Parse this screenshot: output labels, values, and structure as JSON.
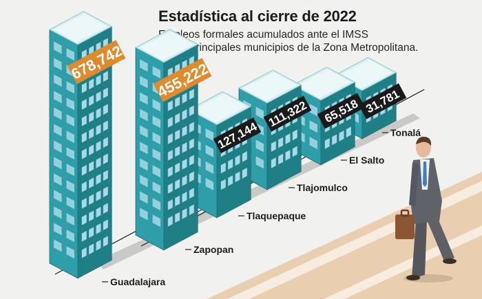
{
  "header": {
    "title": "Estadística al cierre de 2022",
    "subtitle_line1": "Empleos formales acumulados ante el IMSS",
    "subtitle_line2": "de los principales municipios de la Zona Metropolitana."
  },
  "chart_data": {
    "type": "bar",
    "style": "isometric buildings, height proportional to value",
    "title": "Estadística al cierre de 2022",
    "subtitle": "Empleos formales acumulados ante el IMSS de los principales municipios de la Zona Metropolitana.",
    "categories": [
      "Guadalajara",
      "Zapopan",
      "Tlaquepaque",
      "Tlajomulco",
      "El Salto",
      "Tonalá"
    ],
    "values": [
      678742,
      455222,
      127144,
      111322,
      65518,
      31781
    ],
    "value_labels": [
      "678,742",
      "455,222",
      "127,144",
      "111,322",
      "65,518",
      "31,781"
    ],
    "label_emphasis": [
      "orange",
      "orange",
      "black",
      "black",
      "black",
      "black"
    ],
    "xlabel": "",
    "ylabel": "",
    "grid": false,
    "legend": "none"
  },
  "colors": {
    "background": "#f1f1f0",
    "building_front": "#2e9fa8",
    "building_side": "#1f7f87",
    "building_roof": "#d9eef0",
    "window": "#a9d8e6",
    "label_orange": "#e08a2b",
    "label_black": "#1a1a1a",
    "street": "#e9cfb0",
    "stripe": "#f7ece0"
  },
  "decor": {
    "figure": "businessman-walking-with-briefcase"
  }
}
